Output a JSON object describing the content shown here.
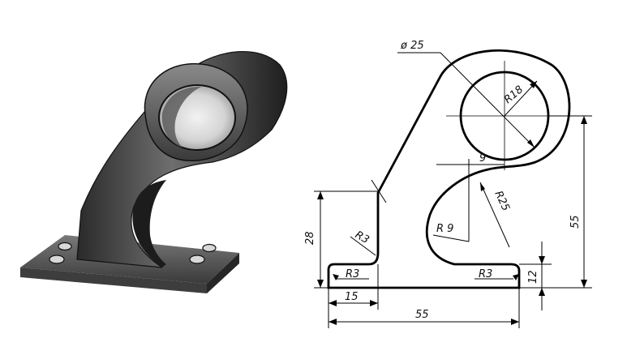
{
  "figure": {
    "illustration": "3d-bracket-render",
    "drawing": {
      "dimensions": {
        "dia_25": "ø 25",
        "r18": "R18",
        "d9": "9",
        "r25": "R25",
        "r9": "R 9",
        "r3_top": "R3",
        "r3_left": "R3",
        "r3_right": "R3",
        "d28": "28",
        "d15": "15",
        "d55_height": "55",
        "d12": "12",
        "d55_width": "55"
      }
    }
  }
}
